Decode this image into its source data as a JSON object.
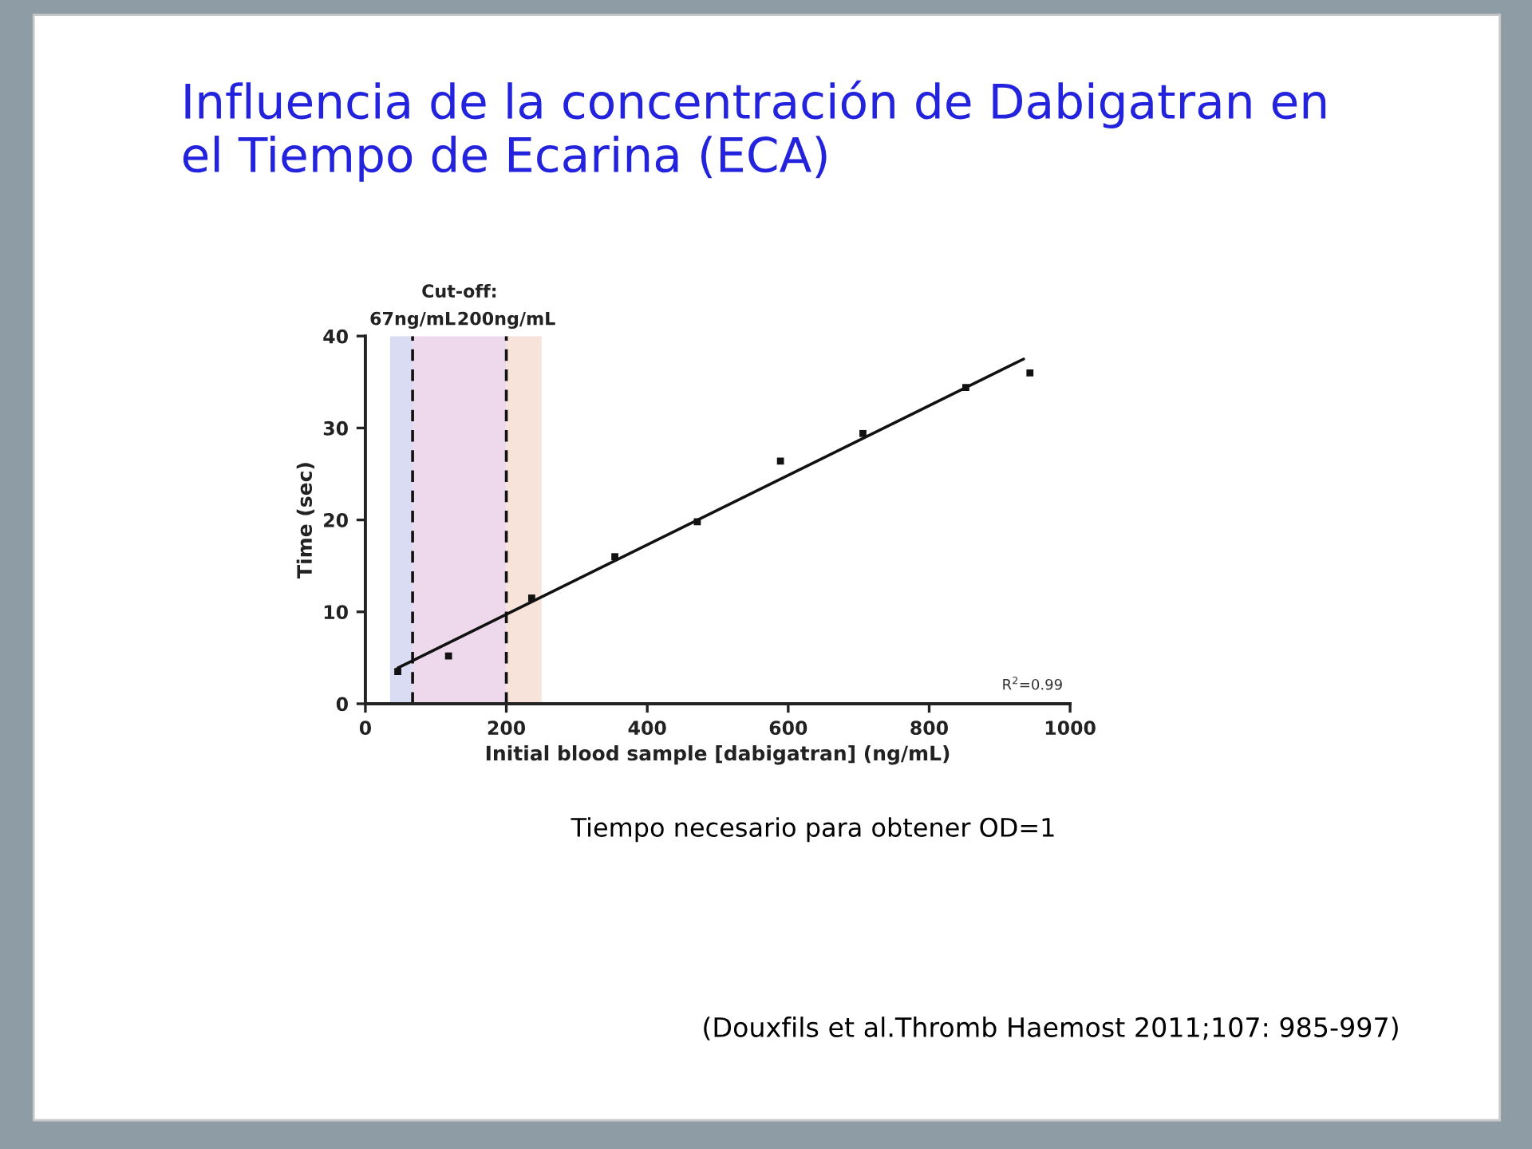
{
  "chart_data": {
    "type": "scatter",
    "title": "Influencia de la concentración de Dabigatran en\nel Tiempo de Ecarina (ECA)",
    "xlabel": "Initial blood sample [dabigatran] (ng/mL)",
    "ylabel": "Time (sec)",
    "marker": "square",
    "series": [
      {
        "color": "#111111",
        "x": [
          46,
          118,
          236,
          354,
          471,
          589,
          706,
          852,
          943
        ],
        "values": [
          3.5,
          5.2,
          11.5,
          16.0,
          19.8,
          26.4,
          29.4,
          34.4,
          36.0
        ]
      },
      {
        "type": "line",
        "color": "#111111",
        "marker": "none",
        "line_style": "solid",
        "x": [
          46,
          934
        ],
        "values": [
          3.9,
          37.5
        ]
      }
    ],
    "xlim": [
      0,
      1000
    ],
    "ylim": [
      0,
      40
    ],
    "xticks": [
      0,
      200,
      400,
      600,
      800,
      1000
    ],
    "yticks": [
      0,
      10,
      20,
      30,
      40
    ],
    "bands": [
      {
        "axis": "x",
        "from": 35,
        "to": 67,
        "color": "#d9dcf2"
      },
      {
        "axis": "x",
        "from": 67,
        "to": 200,
        "color": "#eed8ec"
      },
      {
        "axis": "x",
        "from": 200,
        "to": 250,
        "color": "#f7e3d9"
      }
    ],
    "ref_lines": [
      {
        "axis": "x",
        "value": 67,
        "label": "67ng/mL",
        "line_style": "dashed",
        "color": "#111111"
      },
      {
        "axis": "x",
        "value": 200,
        "label": "200ng/mL",
        "line_style": "dashed",
        "color": "#111111"
      }
    ],
    "annotations": [
      "Cut-off:",
      "R$^{2}$=0.99",
      "Tiempo necesario para obtener OD=1",
      "(Douxfils et al.Thromb Haemost 2011;107: 985-997)"
    ]
  }
}
